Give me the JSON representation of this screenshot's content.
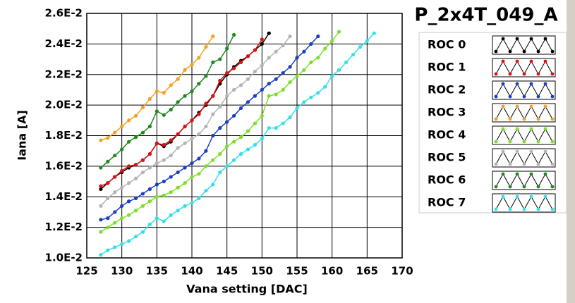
{
  "chart_data": {
    "type": "line",
    "title": "P_2x4T_049_A",
    "xlabel": "Vana setting [DAC]",
    "ylabel": "Iana [A]",
    "x": [
      127,
      128,
      129,
      130,
      131,
      132,
      133,
      134,
      135,
      136,
      137,
      138,
      139,
      140,
      141,
      142,
      143,
      144,
      145,
      146,
      147,
      148,
      149,
      150,
      151,
      152,
      153,
      154,
      155,
      156,
      157,
      158,
      159,
      160,
      161,
      162,
      163,
      164,
      165,
      166
    ],
    "xlim": [
      125,
      170
    ],
    "xticks": [
      125,
      130,
      135,
      140,
      145,
      150,
      155,
      160,
      165,
      170
    ],
    "ylim": [
      0.01,
      0.026
    ],
    "yticks": [
      {
        "value": 0.01,
        "label": "1.0E-2"
      },
      {
        "value": 0.012,
        "label": "1.2E-2"
      },
      {
        "value": 0.014,
        "label": "1.4E-2"
      },
      {
        "value": 0.016,
        "label": "1.6E-2"
      },
      {
        "value": 0.018,
        "label": "1.8E-2"
      },
      {
        "value": 0.02,
        "label": "2.0E-2"
      },
      {
        "value": 0.022,
        "label": "2.2E-2"
      },
      {
        "value": 0.024,
        "label": "2.4E-2"
      },
      {
        "value": 0.026,
        "label": "2.6E-2"
      }
    ],
    "grid": true,
    "legend": "right",
    "series": [
      {
        "name": "ROC 0",
        "color": "#000000",
        "values": [
          0.0145,
          0.0149,
          0.0153,
          0.0156,
          0.0159,
          0.0161,
          0.0164,
          0.0168,
          0.0175,
          0.0173,
          0.0176,
          0.0181,
          0.0186,
          0.019,
          0.0195,
          0.02,
          0.0206,
          0.0214,
          0.022,
          0.0225,
          0.0229,
          0.0232,
          0.0236,
          0.024,
          0.0247,
          null,
          null,
          null,
          null,
          null,
          null,
          null,
          null,
          null,
          null,
          null,
          null,
          null,
          null,
          null
        ]
      },
      {
        "name": "ROC 1",
        "color": "#dd1111",
        "values": [
          0.0147,
          0.0149,
          0.0153,
          0.0157,
          0.016,
          0.0161,
          0.0164,
          0.0168,
          0.0175,
          0.0174,
          0.0177,
          0.0181,
          0.0186,
          0.019,
          0.0194,
          0.0201,
          0.0206,
          0.0216,
          0.0221,
          0.0224,
          0.0228,
          0.0232,
          0.0236,
          0.0243,
          null,
          null,
          null,
          null,
          null,
          null,
          null,
          null,
          null,
          null,
          null,
          null,
          null,
          null,
          null,
          null
        ]
      },
      {
        "name": "ROC 2",
        "color": "#1a3fc0",
        "values": [
          0.0125,
          0.0126,
          0.013,
          0.0134,
          0.0137,
          0.0139,
          0.0142,
          0.0145,
          0.0148,
          0.015,
          0.0153,
          0.0156,
          0.0159,
          0.0162,
          0.0165,
          0.017,
          0.018,
          0.0185,
          0.0189,
          0.0193,
          0.0198,
          0.0202,
          0.0206,
          0.021,
          0.0214,
          0.0217,
          0.0221,
          0.0225,
          0.0231,
          0.0235,
          0.024,
          0.0245,
          null,
          null,
          null,
          null,
          null,
          null,
          null,
          null
        ]
      },
      {
        "name": "ROC 3",
        "color": "#f5a020",
        "values": [
          0.0177,
          0.01785,
          0.0182,
          0.0186,
          0.019,
          0.0193,
          0.01985,
          0.0204,
          0.0209,
          0.0208,
          0.0213,
          0.0217,
          0.0223,
          0.02265,
          0.0231,
          0.0238,
          0.0245,
          null,
          null,
          null,
          null,
          null,
          null,
          null,
          null,
          null,
          null,
          null,
          null,
          null,
          null,
          null,
          null,
          null,
          null,
          null,
          null,
          null,
          null,
          null
        ]
      },
      {
        "name": "ROC 4",
        "color": "#7be02a",
        "values": [
          0.0117,
          0.012,
          0.0123,
          0.0126,
          0.0128,
          0.0131,
          0.0134,
          0.0137,
          0.014,
          0.0141,
          0.0143,
          0.0146,
          0.0149,
          0.0153,
          0.0155,
          0.016,
          0.0164,
          0.0168,
          0.0173,
          0.0176,
          0.0179,
          0.0183,
          0.0188,
          0.0193,
          0.0206,
          0.0207,
          0.021,
          0.0215,
          0.0219,
          0.0223,
          0.0228,
          0.0231,
          0.0237,
          0.0242,
          0.0248,
          null,
          null,
          null,
          null,
          null
        ]
      },
      {
        "name": "ROC 5",
        "color": "#b4b4b4",
        "values": [
          0.0134,
          0.0139,
          0.0143,
          0.0146,
          0.0149,
          0.0152,
          0.0156,
          0.0159,
          0.0162,
          0.0164,
          0.0167,
          0.0172,
          0.0175,
          0.0178,
          0.0181,
          0.0186,
          0.0194,
          0.0199,
          0.0206,
          0.021,
          0.0213,
          0.0217,
          0.0222,
          0.0226,
          0.0231,
          0.0235,
          0.0239,
          0.0245,
          null,
          null,
          null,
          null,
          null,
          null,
          null,
          null,
          null,
          null,
          null,
          null
        ]
      },
      {
        "name": "ROC 6",
        "color": "#1e8a1e",
        "values": [
          0.0159,
          0.0163,
          0.0167,
          0.0171,
          0.0176,
          0.0179,
          0.0182,
          0.0186,
          0.0196,
          0.01935,
          0.0197,
          0.0202,
          0.0206,
          0.0209,
          0.0214,
          0.0219,
          0.0228,
          0.023,
          0.0237,
          0.0246,
          null,
          null,
          null,
          null,
          null,
          null,
          null,
          null,
          null,
          null,
          null,
          null,
          null,
          null,
          null,
          null,
          null,
          null,
          null,
          null
        ]
      },
      {
        "name": "ROC 7",
        "color": "#33e0ea",
        "values": [
          0.0102,
          0.0105,
          0.0107,
          0.0109,
          0.0111,
          0.0114,
          0.0117,
          0.0122,
          0.0126,
          0.0124,
          0.0128,
          0.0131,
          0.0134,
          0.0136,
          0.0139,
          0.0144,
          0.0148,
          0.0156,
          0.016,
          0.0164,
          0.0168,
          0.0171,
          0.0174,
          0.0178,
          0.0185,
          0.0185,
          0.0188,
          0.0192,
          0.0198,
          0.0202,
          0.0205,
          0.0208,
          0.0212,
          0.0219,
          0.0223,
          0.0228,
          0.0233,
          0.0238,
          0.0242,
          0.0247
        ]
      }
    ]
  }
}
